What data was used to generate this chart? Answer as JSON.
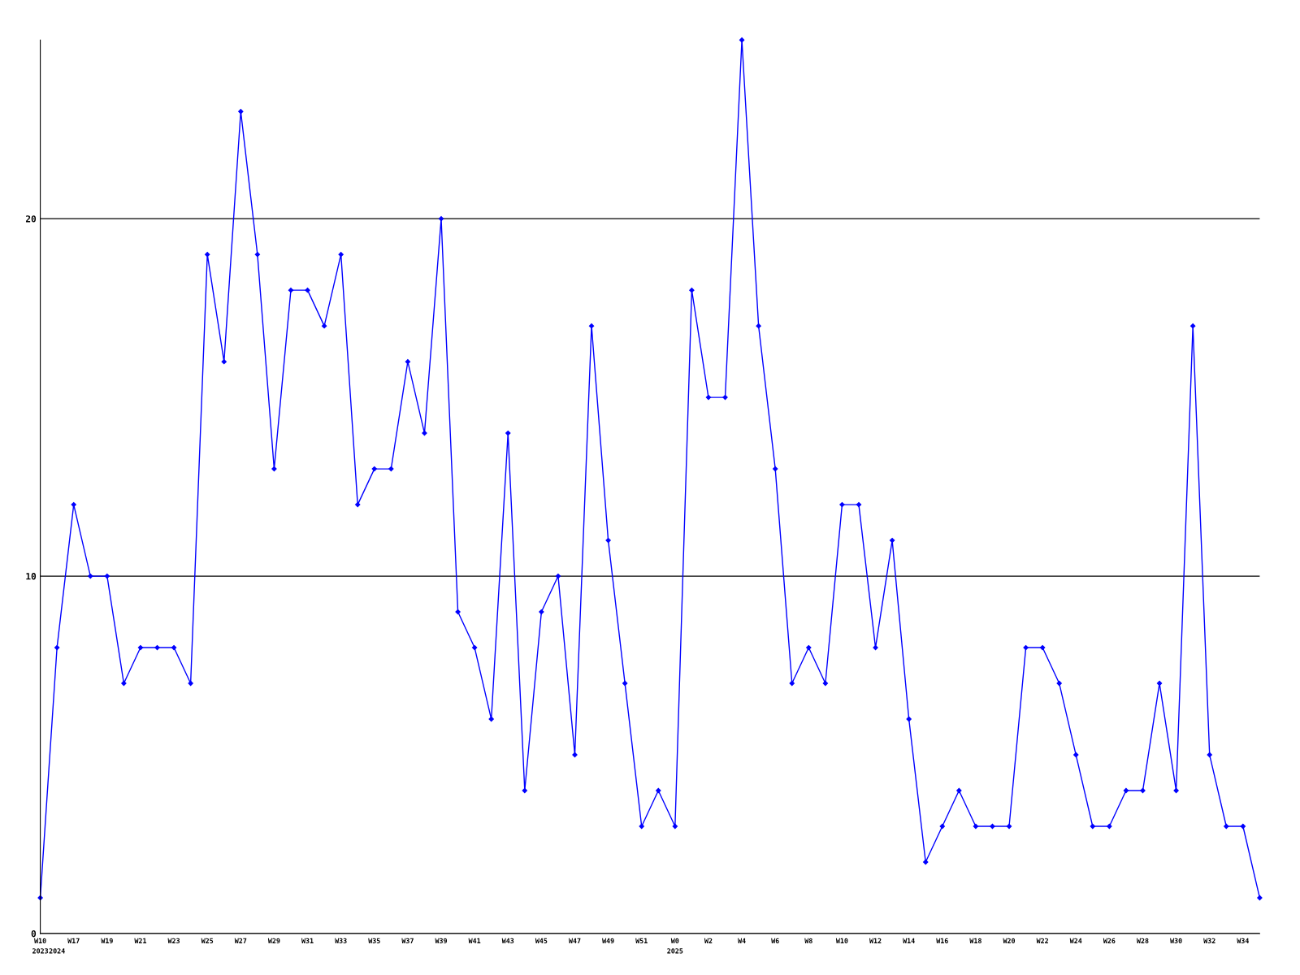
{
  "chart_data": {
    "type": "line",
    "categories": [
      "W10\n2023",
      "\n2024",
      "W17",
      null,
      "W19",
      null,
      "W21",
      null,
      "W23",
      null,
      "W25",
      null,
      "W27",
      null,
      "W29",
      null,
      "W31",
      null,
      "W33",
      null,
      "W35",
      null,
      "W37",
      null,
      "W39",
      null,
      "W41",
      null,
      "W43",
      null,
      "W45",
      null,
      "W47",
      null,
      "W49",
      null,
      "W51",
      null,
      "W0\n2025",
      null,
      "W2",
      null,
      "W4",
      null,
      "W6",
      null,
      "W8",
      null,
      "W10",
      null,
      "W12",
      null,
      "W14",
      null,
      "W16",
      null,
      "W18",
      null,
      "W20",
      null,
      "W22",
      null,
      "W24",
      null,
      "W26",
      null,
      "W28",
      null,
      "W30",
      null,
      "W32",
      null,
      "W34",
      null
    ],
    "series": [
      {
        "color": "#0000ff",
        "values": [
          1,
          8,
          12,
          10,
          10,
          7,
          8,
          8,
          8,
          7,
          19,
          16,
          23,
          19,
          13,
          18,
          18,
          17,
          19,
          12,
          13,
          13,
          16,
          14,
          20,
          9,
          8,
          6,
          14,
          4,
          9,
          10,
          5,
          17,
          11,
          7,
          3,
          4,
          3,
          18,
          15,
          15,
          25,
          17,
          13,
          7,
          8,
          7,
          12,
          12,
          8,
          11,
          6,
          2,
          3,
          4,
          3,
          3,
          3,
          8,
          8,
          7,
          5,
          3,
          3,
          4,
          4,
          7,
          4,
          17,
          5,
          3,
          3,
          1
        ]
      }
    ],
    "ylim": [
      0,
      25
    ],
    "yticks": [
      0,
      10,
      20
    ],
    "grid": "y",
    "marker": "diamond",
    "line_style": "solid",
    "legend": false
  }
}
